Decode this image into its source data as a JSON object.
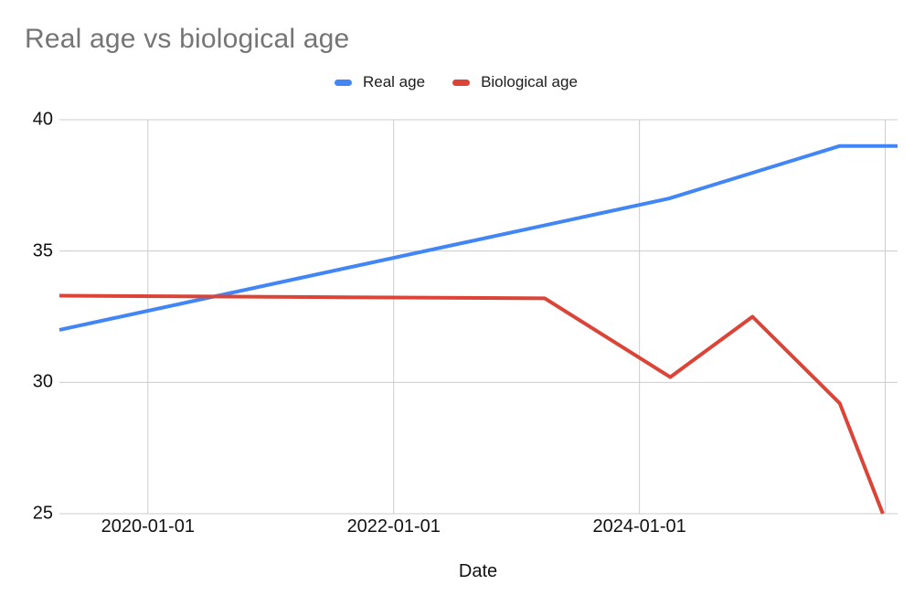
{
  "chart_data": {
    "type": "line",
    "title": "Real age vs biological age",
    "xlabel": "Date",
    "legend_position": "top-center",
    "grid": true,
    "colors": {
      "background": "#ffffff",
      "title_text": "#757575",
      "axis_text": "#111111",
      "gridline": "#cccccc"
    },
    "x_axis": {
      "range": [
        2019.28,
        2026.1
      ],
      "ticks": [
        {
          "value": 2020.0,
          "label": "2020-01-01"
        },
        {
          "value": 2022.0,
          "label": "2022-01-01"
        },
        {
          "value": 2024.0,
          "label": "2024-01-01"
        },
        {
          "value": 2026.0,
          "label": ""
        }
      ]
    },
    "y_axis": {
      "range": [
        25,
        40
      ],
      "ticks": [
        {
          "value": 25,
          "label": "25"
        },
        {
          "value": 30,
          "label": "30"
        },
        {
          "value": 35,
          "label": "35"
        },
        {
          "value": 40,
          "label": "40"
        }
      ]
    },
    "series": [
      {
        "name": "Real age",
        "color": "#4285F4",
        "points": [
          [
            2019.28,
            32.0
          ],
          [
            2024.24,
            37.0
          ],
          [
            2025.63,
            39.0
          ],
          [
            2026.1,
            39.0
          ]
        ]
      },
      {
        "name": "Biological age",
        "color": "#DB4437",
        "points": [
          [
            2019.28,
            33.3
          ],
          [
            2023.23,
            33.2
          ],
          [
            2024.25,
            30.2
          ],
          [
            2024.92,
            32.5
          ],
          [
            2025.63,
            29.2
          ],
          [
            2025.98,
            25.0
          ]
        ]
      }
    ]
  }
}
